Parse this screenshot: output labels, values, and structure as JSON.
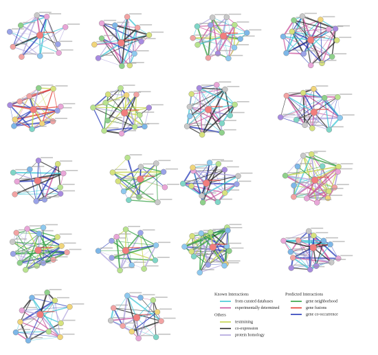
{
  "legend": {
    "known_title": "Known Interactions",
    "known": [
      {
        "name": "from curated databases",
        "color": "#3ec6d6"
      },
      {
        "name": "experimentally determined",
        "color": "#c8509a"
      }
    ],
    "others_title": "Others",
    "others": [
      {
        "name": "textmining",
        "color": "#c3d44a"
      },
      {
        "name": "co-expression",
        "color": "#222222"
      },
      {
        "name": "protein homology",
        "color": "#aea2dc"
      }
    ],
    "predicted_title": "Predicted Interactions",
    "predicted": [
      {
        "name": "gene neighborhood",
        "color": "#2f9e3f"
      },
      {
        "name": "gene fusions",
        "color": "#e2372e"
      },
      {
        "name": "gene co-occurrence",
        "color": "#2438b8"
      }
    ]
  }
}
